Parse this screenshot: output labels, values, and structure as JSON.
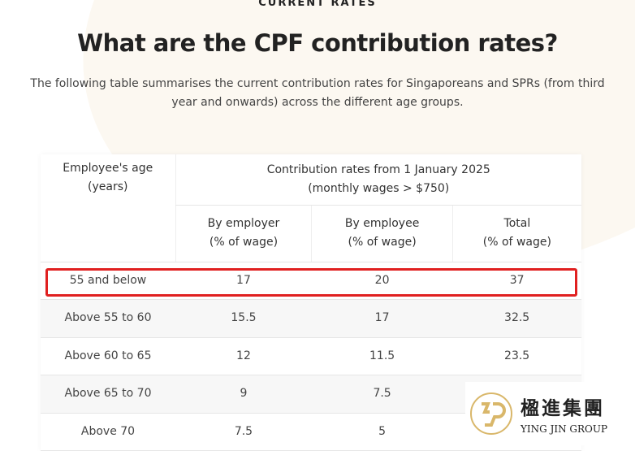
{
  "section_label": "CURRENT RATES",
  "title": "What are the CPF contribution rates?",
  "intro": "The following table summarises the current contribution rates for Singaporeans and SPRs (from third year and onwards) across the different age groups.",
  "table": {
    "age_header": [
      "Employee's age",
      "(years)"
    ],
    "group_header": [
      "Contribution rates from 1 January 2025",
      "(monthly wages > $750)"
    ],
    "columns": [
      [
        "By employer",
        "(% of wage)"
      ],
      [
        "By employee",
        "(% of wage)"
      ],
      [
        "Total",
        "(% of wage)"
      ]
    ],
    "rows": [
      [
        "55 and below",
        "17",
        "20",
        "37"
      ],
      [
        "Above 55 to 60",
        "15.5",
        "17",
        "32.5"
      ],
      [
        "Above 60 to 65",
        "12",
        "11.5",
        "23.5"
      ],
      [
        "Above 65 to 70",
        "9",
        "7.5",
        ""
      ],
      [
        "Above 70",
        "7.5",
        "5",
        ""
      ]
    ],
    "highlighted_row": 0,
    "highlight_color": "#e02020"
  },
  "watermark": {
    "chinese": "楹進集團",
    "english": "YING JIN GROUP",
    "color": "#d9b76a"
  }
}
